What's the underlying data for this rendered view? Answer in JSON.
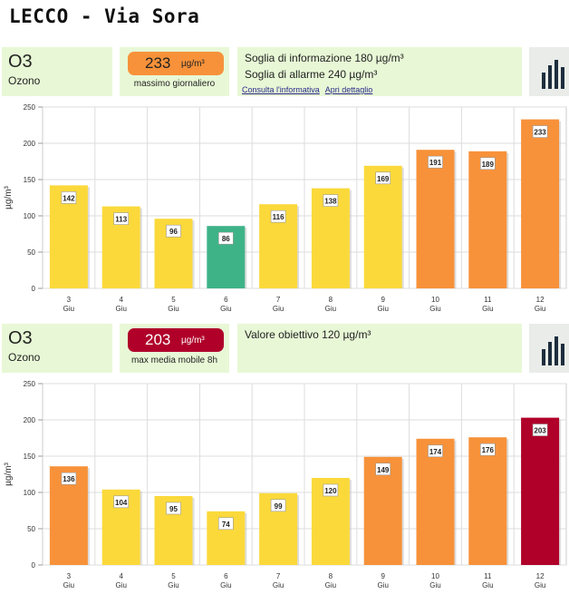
{
  "page": {
    "title": "LECCO - Via Sora"
  },
  "colors": {
    "yellow": "#fbd93b",
    "orange": "#f7923a",
    "green": "#3fb388",
    "red": "#b0002a",
    "info_bg": "#e8f8d6"
  },
  "panels": [
    {
      "pollutant_code": "O3",
      "pollutant_name": "Ozono",
      "value": "233",
      "unit": "µg/m³",
      "value_caption": "massimo giornaliero",
      "value_color": "orange",
      "info_line1": "Soglia di informazione 180 µg/m³",
      "info_line2": "Soglia di allarme 240 µg/m³",
      "link1": "Consulta l'informativa",
      "link2": "Apri dettaglio",
      "chart_icon": "bar-chart-icon"
    },
    {
      "pollutant_code": "O3",
      "pollutant_name": "Ozono",
      "value": "203",
      "unit": "µg/m³",
      "value_caption": "max media mobile 8h",
      "value_color": "red",
      "info_line1": "Valore obiettivo 120 µg/m³",
      "chart_icon": "bar-chart-icon"
    }
  ],
  "chart_data": [
    {
      "type": "bar",
      "categories": [
        "3 Giu",
        "4 Giu",
        "5 Giu",
        "6 Giu",
        "7 Giu",
        "8 Giu",
        "9 Giu",
        "10 Giu",
        "11 Giu",
        "12 Giu"
      ],
      "values": [
        142,
        113,
        96,
        86,
        116,
        138,
        169,
        191,
        189,
        233
      ],
      "colors": [
        "yellow",
        "yellow",
        "yellow",
        "green",
        "yellow",
        "yellow",
        "yellow",
        "orange",
        "orange",
        "orange"
      ],
      "ylabel": "µg/m³",
      "ylim": [
        0,
        250
      ],
      "yticks": [
        0,
        50,
        100,
        150,
        200,
        250
      ],
      "grid": true
    },
    {
      "type": "bar",
      "categories": [
        "3 Giu",
        "4 Giu",
        "5 Giu",
        "6 Giu",
        "7 Giu",
        "8 Giu",
        "9 Giu",
        "10 Giu",
        "11 Giu",
        "12 Giu"
      ],
      "values": [
        136,
        104,
        95,
        74,
        99,
        120,
        149,
        174,
        176,
        203
      ],
      "colors": [
        "orange",
        "yellow",
        "yellow",
        "yellow",
        "yellow",
        "yellow",
        "orange",
        "orange",
        "orange",
        "red"
      ],
      "ylabel": "µg/m³",
      "ylim": [
        0,
        250
      ],
      "yticks": [
        0,
        50,
        100,
        150,
        200,
        250
      ],
      "grid": true
    }
  ]
}
